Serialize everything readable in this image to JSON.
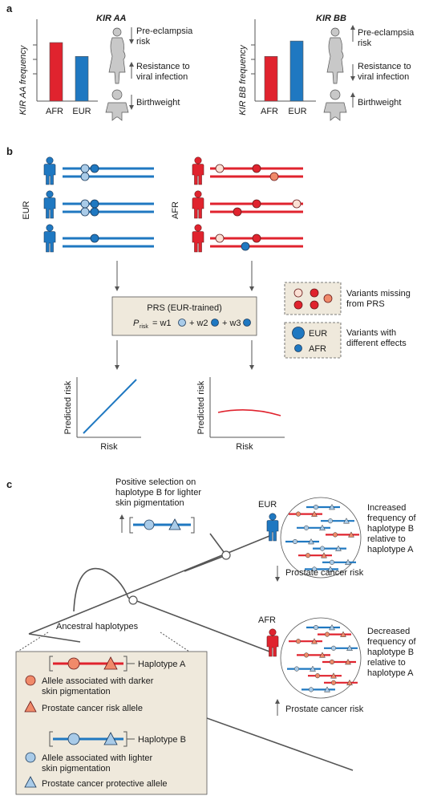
{
  "panel_a": {
    "letter": "a",
    "left": {
      "title": "KIR AA",
      "ylabel": "KIR AA frequency",
      "categories": [
        "AFR",
        "EUR"
      ],
      "values": [
        0.76,
        0.58
      ],
      "notes": [
        "Pre-eclampsia risk",
        "Resistance to viral infection",
        "Birthweight"
      ]
    },
    "right": {
      "title": "KIR BB",
      "ylabel": "KIR BB frequency",
      "categories": [
        "AFR",
        "EUR"
      ],
      "values": [
        0.58,
        0.78
      ],
      "notes": [
        "Pre-eclampsia risk",
        "Resistance to viral infection",
        "Birthweight"
      ]
    },
    "colors": {
      "AFR": "#e0232e",
      "EUR": "#1f78c1"
    }
  },
  "panel_b": {
    "letter": "b",
    "group_eur": "EUR",
    "group_afr": "AFR",
    "prs_title": "PRS (EUR-trained)",
    "prs_formula": {
      "p": "P",
      "sub": "risk",
      "terms": [
        "= w1",
        "+ w2",
        "+ w3"
      ]
    },
    "legend_missing": "Variants missing from PRS",
    "legend_different": "Variants with different effects",
    "legend_eur": "EUR",
    "legend_afr": "AFR",
    "plot_xlabel": "Risk",
    "plot_ylabel": "Predicted risk"
  },
  "panel_c": {
    "letter": "c",
    "selection_text": "Positive selection on haplotype B for lighter skin pigmentation",
    "eur_label": "EUR",
    "afr_label": "AFR",
    "eur_note": "Increased frequency of haplotype B relative to haplotype A",
    "afr_note": "Decreased frequency of haplotype B relative to haplotype A",
    "eur_risk": "Prostate cancer risk",
    "afr_risk": "Prostate cancer risk",
    "ancestral": "Ancestral haplotypes",
    "haplotype_a": "Haplotype A",
    "haplotype_b": "Haplotype B",
    "legend_dark": "Allele associated with darker skin pigmentation",
    "legend_risk": "Prostate cancer risk allele",
    "legend_light": "Allele associated with lighter skin pigmentation",
    "legend_protective": "Prostate cancer protective allele"
  },
  "colors": {
    "red": "#e0232e",
    "blue": "#1f78c1",
    "light_blue": "#a9cbe8",
    "salmon": "#f08a6a",
    "beige": "#efe9dc",
    "grey": "#555555"
  }
}
